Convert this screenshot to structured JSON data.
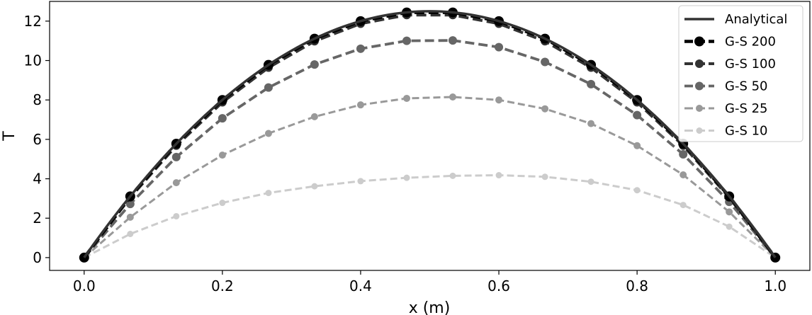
{
  "chart_data": {
    "type": "line",
    "title": "",
    "xlabel": "x (m)",
    "ylabel": "T",
    "xlim": [
      -0.05,
      1.05
    ],
    "ylim": [
      -0.65,
      13.0
    ],
    "x_ticks": [
      0.0,
      0.2,
      0.4,
      0.6,
      0.8,
      1.0
    ],
    "x_tick_labels": [
      "0.0",
      "0.2",
      "0.4",
      "0.6",
      "0.8",
      "1.0"
    ],
    "y_ticks": [
      0,
      2,
      4,
      6,
      8,
      10,
      12
    ],
    "y_tick_labels": [
      "0",
      "2",
      "4",
      "6",
      "8",
      "10",
      "12"
    ],
    "grid": false,
    "legend_position": "top-right",
    "analytical": {
      "name": "Analytical",
      "color": "#333333",
      "peak": 12.5,
      "shape": "parabola 50*x*(1-x)"
    },
    "x": [
      0.0,
      0.0667,
      0.1333,
      0.2,
      0.2667,
      0.3333,
      0.4,
      0.4667,
      0.5333,
      0.6,
      0.6667,
      0.7333,
      0.8,
      0.8667,
      0.9333,
      1.0
    ],
    "series": [
      {
        "name": "G-S 200",
        "color": "#000000",
        "values": [
          0.0,
          3.11,
          5.78,
          8.0,
          9.78,
          11.11,
          12.0,
          12.44,
          12.44,
          12.0,
          11.11,
          9.78,
          8.0,
          5.78,
          3.11,
          0.0
        ]
      },
      {
        "name": "G-S 100",
        "color": "#333333",
        "values": [
          0.0,
          3.05,
          5.68,
          7.88,
          9.64,
          10.98,
          11.87,
          12.31,
          12.31,
          11.87,
          10.98,
          9.64,
          7.88,
          5.68,
          3.05,
          0.0
        ]
      },
      {
        "name": "G-S 50",
        "color": "#666666",
        "values": [
          0.0,
          2.72,
          5.1,
          7.07,
          8.63,
          9.8,
          10.6,
          11.0,
          11.02,
          10.68,
          9.93,
          8.8,
          7.23,
          5.24,
          2.83,
          0.0
        ]
      },
      {
        "name": "G-S 25",
        "color": "#999999",
        "values": [
          0.0,
          2.05,
          3.8,
          5.2,
          6.3,
          7.15,
          7.75,
          8.08,
          8.15,
          8.0,
          7.55,
          6.8,
          5.68,
          4.2,
          2.32,
          0.0
        ]
      },
      {
        "name": "G-S 10",
        "color": "#cccccc",
        "values": [
          0.0,
          1.2,
          2.1,
          2.78,
          3.28,
          3.62,
          3.88,
          4.05,
          4.15,
          4.18,
          4.1,
          3.85,
          3.42,
          2.67,
          1.57,
          0.0
        ]
      }
    ]
  }
}
